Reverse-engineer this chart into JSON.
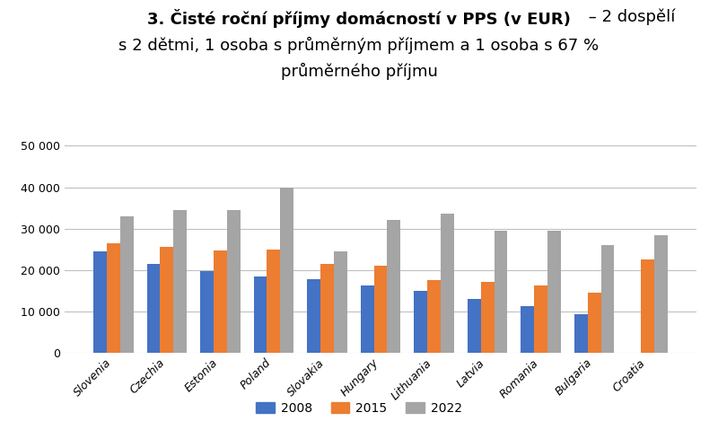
{
  "categories": [
    "Slovenia",
    "Czechia",
    "Estonia",
    "Poland",
    "Slovakia",
    "Hungary",
    "Lithuania",
    "Latvia",
    "Romania",
    "Bulgaria",
    "Croatia"
  ],
  "series": {
    "2008": [
      24500,
      21500,
      19800,
      18500,
      17800,
      16200,
      15000,
      13000,
      11200,
      9200,
      0
    ],
    "2015": [
      26500,
      25500,
      24800,
      25000,
      21500,
      21000,
      17500,
      17000,
      16200,
      14500,
      22500
    ],
    "2022": [
      33000,
      34500,
      34500,
      40000,
      24500,
      32000,
      33500,
      29500,
      29500,
      26000,
      28500
    ]
  },
  "colors": {
    "2008": "#4472C4",
    "2015": "#ED7D31",
    "2022": "#A5A5A5"
  },
  "ylim": [
    0,
    52000
  ],
  "yticks": [
    0,
    10000,
    20000,
    30000,
    40000,
    50000
  ],
  "background_color": "#FFFFFF",
  "grid_color": "#C0C0C0",
  "legend_labels": [
    "2008",
    "2015",
    "2022"
  ],
  "title_line1_bold": "3. Čisté roční příjmy domácností v PPS (v EUR)",
  "title_line1_normal": " – 2 dospělí",
  "title_line2": "s 2 dětmi, 1 osoba s průměrným příjmem a 1 osoba s 67 %",
  "title_line3": "průměrného příjmu",
  "title_fontsize": 13,
  "axis_fontsize": 9,
  "legend_fontsize": 10,
  "bar_width": 0.25
}
